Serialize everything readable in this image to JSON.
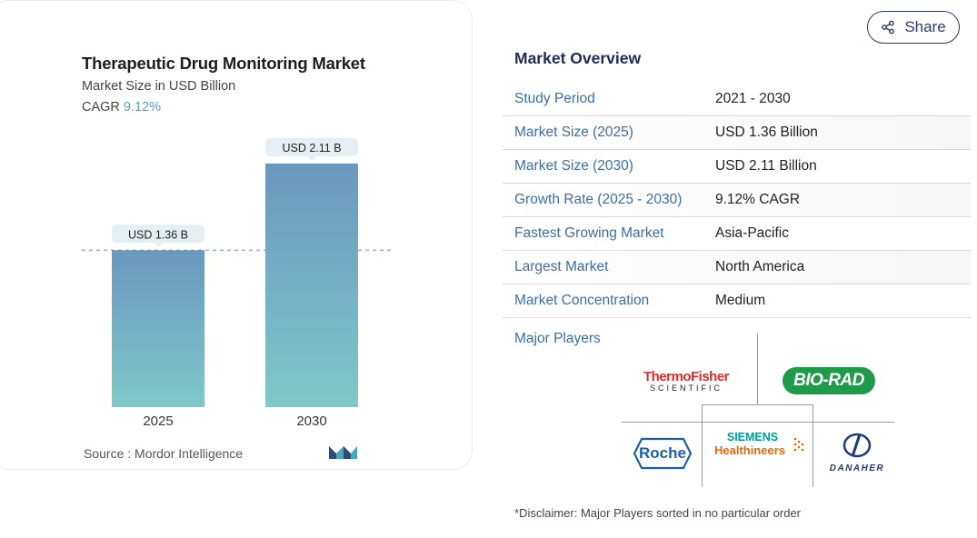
{
  "chart": {
    "title": "Therapeutic Drug Monitoring Market",
    "subtitle": "Market Size in USD Billion",
    "cagr_label": "CAGR",
    "cagr_value": "9.12%",
    "source": "Source :  Mordor Intelligence"
  },
  "chart_data": {
    "type": "bar",
    "categories": [
      "2025",
      "2030"
    ],
    "values": [
      1.36,
      2.11
    ],
    "data_labels": [
      "USD 1.36 B",
      "USD 2.11 B"
    ],
    "title": "Therapeutic Drug Monitoring Market",
    "subtitle": "Market Size in USD Billion",
    "ylim": [
      0,
      2.11
    ],
    "grid": false,
    "reference_line": 1.36,
    "bar_color_top": "#6a97bf",
    "bar_color_bottom": "#7fc8c9"
  },
  "share": {
    "label": "Share"
  },
  "overview": {
    "title": "Market Overview",
    "rows": [
      {
        "key": "Study Period",
        "value": "2021 - 2030"
      },
      {
        "key": "Market Size (2025)",
        "value": "USD 1.36 Billion"
      },
      {
        "key": "Market Size (2030)",
        "value": "USD 2.11 Billion"
      },
      {
        "key": "Growth Rate (2025 - 2030)",
        "value": "9.12% CAGR"
      },
      {
        "key": "Fastest Growing Market",
        "value": "Asia-Pacific"
      },
      {
        "key": "Largest Market",
        "value": "North America"
      },
      {
        "key": "Market Concentration",
        "value": "Medium"
      }
    ]
  },
  "players": {
    "label": "Major Players",
    "logos": {
      "thermo_top": "ThermoFisher",
      "thermo_bottom": "SCIENTIFIC",
      "biorad": "BIO-RAD",
      "roche": "Roche",
      "siemens_top": "SIEMENS",
      "siemens_bottom": "Healthineers",
      "danaher": "DANAHER"
    }
  },
  "disclaimer": "*Disclaimer: Major Players sorted in no particular order"
}
